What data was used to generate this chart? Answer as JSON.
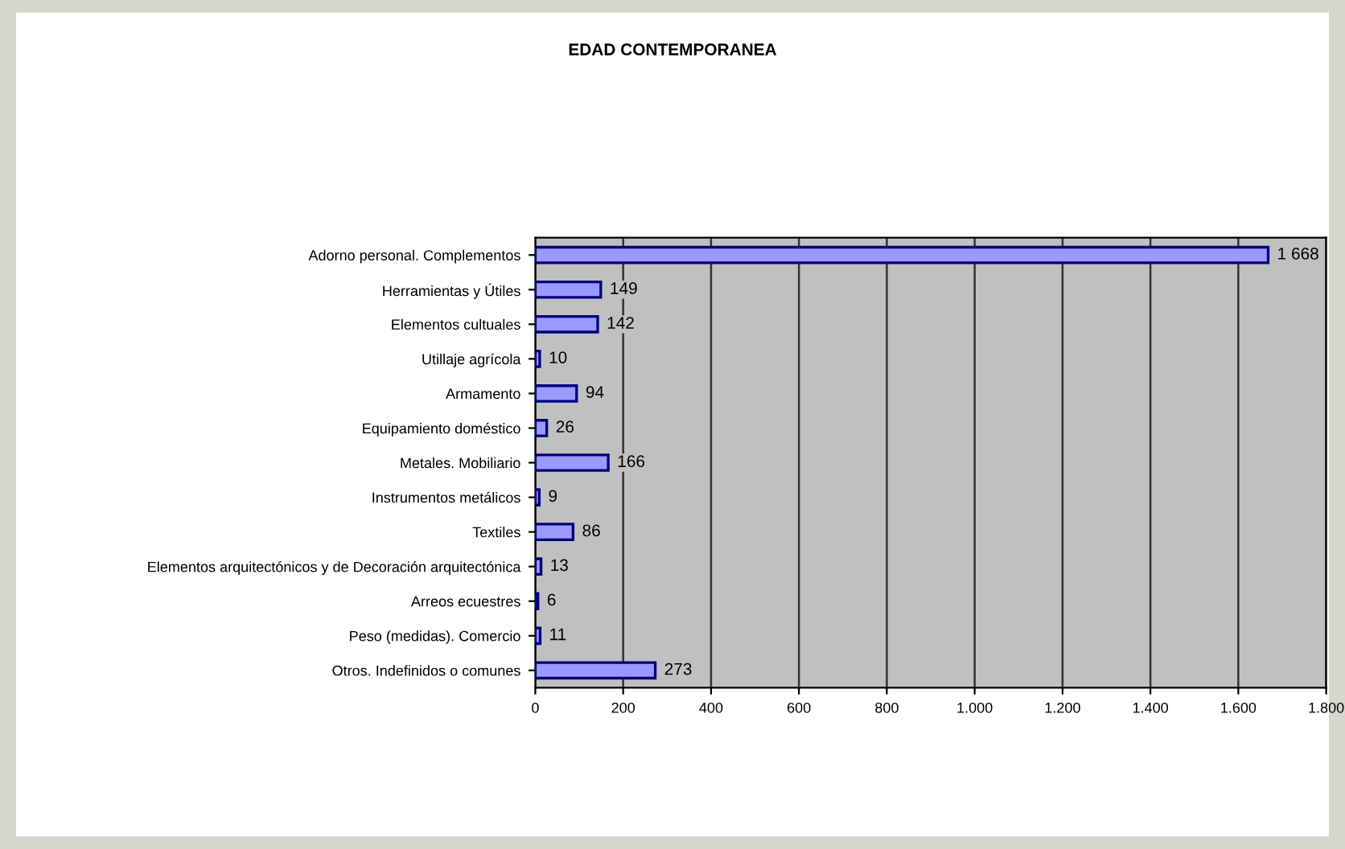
{
  "chart_data": {
    "type": "bar",
    "orientation": "horizontal",
    "title": "EDAD CONTEMPORANEA",
    "categories": [
      "Adorno personal. Complementos",
      "Herramientas y Útiles",
      "Elementos cultuales",
      "Utillaje agrícola",
      "Armamento",
      "Equipamiento doméstico",
      "Metales. Mobiliario",
      "Instrumentos metálicos",
      "Textiles",
      "Elementos arquitectónicos y de Decoración arquitectónica",
      "Arreos ecuestres",
      "Peso (medidas). Comercio",
      "Otros. Indefinidos o comunes"
    ],
    "values": [
      1668,
      149,
      142,
      10,
      94,
      26,
      166,
      9,
      86,
      13,
      6,
      11,
      273
    ],
    "value_labels": [
      "1 668",
      "149",
      "142",
      "10",
      "94",
      "26",
      "166",
      "9",
      "86",
      "13",
      "6",
      "11",
      "273"
    ],
    "color": "#9999ff",
    "xlim": [
      0,
      1800
    ],
    "xticks": [
      0,
      200,
      400,
      600,
      800,
      {
        "value": 1000,
        "label": "1.000"
      },
      {
        "value": 1200,
        "label": "1.200"
      },
      {
        "value": 1400,
        "label": "1.400"
      },
      {
        "value": 1600,
        "label": "1.600"
      },
      {
        "value": 1800,
        "label": "1.800"
      }
    ],
    "grid": "x"
  }
}
